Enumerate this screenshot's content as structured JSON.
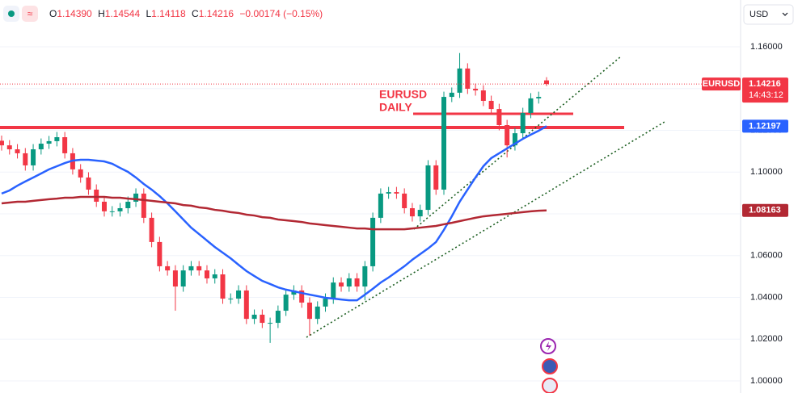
{
  "chart_data": {
    "type": "candlestick",
    "symbol": "EURUSD",
    "currency": "USD",
    "header": {
      "labels": [
        "O",
        "H",
        "L",
        "C"
      ],
      "open": "1.14390",
      "change": "−0.00174 (−0.15%)"
    },
    "annotation_lines": [
      "EURUSD",
      "DAILY"
    ],
    "countdown": "14:43:12",
    "up_color": "#089981",
    "down_color": "#f23645",
    "ylim": [
      0.9942,
      1.1824
    ],
    "yticks": [
      {
        "value": 1.0,
        "label": "1.00000"
      },
      {
        "value": 1.02,
        "label": "1.02000"
      },
      {
        "value": 1.04,
        "label": "1.04000"
      },
      {
        "value": 1.06,
        "label": "1.06000"
      },
      {
        "value": 1.08,
        "label": "1.08000"
      },
      {
        "value": 1.1,
        "label": "1.10000"
      },
      {
        "value": 1.12,
        "label": "1.12000"
      },
      {
        "value": 1.14,
        "label": "1.14000"
      },
      {
        "value": 1.16,
        "label": "1.16000"
      }
    ],
    "grid": true,
    "open": [
      1.115,
      1.1128,
      1.1109,
      1.109,
      1.1032,
      1.1109,
      1.1136,
      1.1148,
      1.1167,
      1.109,
      1.1013,
      1.0974,
      1.0916,
      1.0858,
      1.0812,
      1.0812,
      1.0827,
      1.0858,
      1.0897,
      1.0781,
      1.0665,
      1.0549,
      1.0529,
      1.0452,
      1.0529,
      1.0549,
      1.0529,
      1.0491,
      1.051,
      1.0394,
      1.0394,
      1.0433,
      1.0297,
      1.0317,
      1.0278,
      1.0278,
      1.0336,
      1.0413,
      1.0433,
      1.0375,
      1.0297,
      1.0356,
      1.0394,
      1.0471,
      1.0452,
      1.0491,
      1.0452,
      1.0549,
      1.0781,
      1.0897,
      1.0904,
      1.0897,
      1.0827,
      1.0788,
      1.0819,
      1.1032,
      1.0916,
      1.136,
      1.138,
      1.1496,
      1.1399,
      1.1391,
      1.1341,
      1.1302,
      1.1225,
      1.1128,
      1.1186,
      1.1283,
      1.1353,
      1.1439
    ],
    "high": [
      1.1175,
      1.1153,
      1.1134,
      1.1115,
      1.1134,
      1.1161,
      1.1173,
      1.1192,
      1.1192,
      1.1115,
      1.1038,
      1.0999,
      1.0941,
      1.0883,
      1.0837,
      1.0852,
      1.0883,
      1.0922,
      1.0922,
      1.0806,
      1.069,
      1.0574,
      1.0554,
      1.0554,
      1.0574,
      1.0574,
      1.0554,
      1.0535,
      1.0535,
      1.0419,
      1.0458,
      1.0458,
      1.0342,
      1.0342,
      1.0303,
      1.0361,
      1.0438,
      1.0458,
      1.0458,
      1.04,
      1.0381,
      1.0419,
      1.0496,
      1.0496,
      1.0516,
      1.0516,
      1.0574,
      1.0806,
      1.0922,
      1.0929,
      1.0929,
      1.0922,
      1.0852,
      1.0844,
      1.1057,
      1.1057,
      1.1385,
      1.1405,
      1.157,
      1.1521,
      1.1424,
      1.1416,
      1.1366,
      1.1327,
      1.125,
      1.1211,
      1.1308,
      1.1378,
      1.1385,
      1.14544
    ],
    "low": [
      1.1103,
      1.1084,
      1.1065,
      1.1007,
      1.1007,
      1.1084,
      1.1111,
      1.1123,
      1.1065,
      1.0988,
      1.0949,
      1.0891,
      1.0833,
      1.0787,
      1.0787,
      1.0787,
      1.0802,
      1.0833,
      1.0756,
      1.064,
      1.0524,
      1.0504,
      1.0336,
      1.0427,
      1.0504,
      1.0504,
      1.0466,
      1.0466,
      1.0369,
      1.0369,
      1.0369,
      1.0272,
      1.0272,
      1.0253,
      1.0182,
      1.0253,
      1.0311,
      1.0388,
      1.035,
      1.0217,
      1.0272,
      1.0331,
      1.0369,
      1.0427,
      1.0427,
      1.0427,
      1.0386,
      1.0524,
      1.0756,
      1.0872,
      1.0872,
      1.0802,
      1.0763,
      1.0763,
      1.0794,
      1.0891,
      1.0891,
      1.1335,
      1.1355,
      1.1374,
      1.1366,
      1.1316,
      1.1277,
      1.12,
      1.107,
      1.1103,
      1.1161,
      1.1258,
      1.1328,
      1.14118
    ],
    "close": [
      1.1128,
      1.1109,
      1.109,
      1.1032,
      1.1109,
      1.1136,
      1.1148,
      1.1167,
      1.109,
      1.1013,
      1.0974,
      1.0916,
      1.0858,
      1.0812,
      1.0812,
      1.0827,
      1.0858,
      1.0897,
      1.0781,
      1.0665,
      1.0549,
      1.0529,
      1.0452,
      1.0529,
      1.0549,
      1.0529,
      1.0491,
      1.051,
      1.0394,
      1.0394,
      1.0433,
      1.0297,
      1.0317,
      1.0278,
      1.0278,
      1.0336,
      1.0413,
      1.0433,
      1.0375,
      1.0297,
      1.0356,
      1.0394,
      1.0471,
      1.0452,
      1.0491,
      1.0452,
      1.0549,
      1.0781,
      1.0897,
      1.0904,
      1.0897,
      1.0827,
      1.0788,
      1.0819,
      1.1032,
      1.0916,
      1.136,
      1.138,
      1.1496,
      1.1399,
      1.1391,
      1.1341,
      1.1302,
      1.1225,
      1.1128,
      1.1186,
      1.1283,
      1.1353,
      1.136,
      1.14216
    ],
    "series": [
      {
        "color": "#2962ff",
        "values": [
          1.0897,
          1.0912,
          1.0935,
          1.0955,
          1.0974,
          1.0993,
          1.1013,
          1.1028,
          1.1043,
          1.1055,
          1.1059,
          1.1059,
          1.1055,
          1.1051,
          1.104,
          1.102,
          1.1001,
          1.0974,
          1.0943,
          1.0916,
          1.0885,
          1.085,
          1.0812,
          1.0773,
          1.0734,
          1.0703,
          1.0672,
          1.0641,
          1.0614,
          1.0587,
          1.0556,
          1.0526,
          1.0502,
          1.0479,
          1.0464,
          1.0448,
          1.0437,
          1.0429,
          1.0421,
          1.0413,
          1.0406,
          1.0398,
          1.0394,
          1.039,
          1.0386,
          1.0386,
          1.0413,
          1.0441,
          1.0471,
          1.0495,
          1.0522,
          1.0549,
          1.058,
          1.0607,
          1.0634,
          1.0665,
          1.0723,
          1.0788,
          1.0858,
          1.0916,
          1.0974,
          1.1028,
          1.1067,
          1.109,
          1.1113,
          1.1136,
          1.1159,
          1.1179,
          1.1198,
          1.12197
        ]
      },
      {
        "color": "#b22833",
        "values": [
          1.085,
          1.0854,
          1.0858,
          1.0858,
          1.0862,
          1.0866,
          1.087,
          1.0873,
          1.0877,
          1.0877,
          1.0881,
          1.0881,
          1.0881,
          1.0881,
          1.0877,
          1.0877,
          1.0873,
          1.087,
          1.0866,
          1.0862,
          1.0858,
          1.0854,
          1.085,
          1.0842,
          1.0839,
          1.0831,
          1.0827,
          1.0819,
          1.0815,
          1.0808,
          1.0804,
          1.0796,
          1.0792,
          1.0784,
          1.0781,
          1.0773,
          1.0769,
          1.0765,
          1.0761,
          1.0754,
          1.075,
          1.0746,
          1.0742,
          1.0738,
          1.0734,
          1.073,
          1.073,
          1.0726,
          1.0726,
          1.0726,
          1.0726,
          1.0726,
          1.073,
          1.0734,
          1.0738,
          1.0742,
          1.075,
          1.0757,
          1.0765,
          1.0773,
          1.0781,
          1.0788,
          1.0792,
          1.0796,
          1.08,
          1.0804,
          1.0808,
          1.0812,
          1.0815,
          1.08163
        ]
      }
    ]
  }
}
